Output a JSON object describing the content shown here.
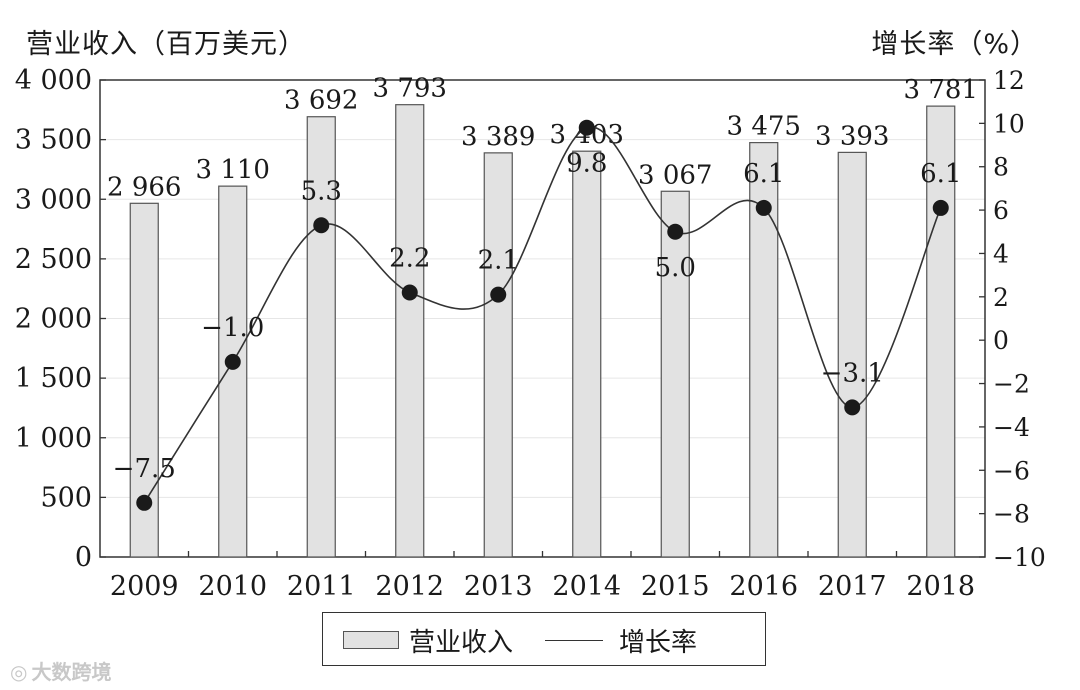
{
  "chart_data": {
    "type": "bar+line",
    "categories": [
      "2009",
      "2010",
      "2011",
      "2012",
      "2013",
      "2014",
      "2015",
      "2016",
      "2017",
      "2018"
    ],
    "series": [
      {
        "name": "营业收入",
        "type": "bar",
        "axis": "left",
        "values": [
          2966,
          3110,
          3692,
          3793,
          3389,
          3403,
          3067,
          3475,
          3393,
          3781
        ],
        "labels": [
          "2 966",
          "3 110",
          "3 692",
          "3 793",
          "3 389",
          "3 403",
          "3 067",
          "3 475",
          "3 393",
          "3 781"
        ]
      },
      {
        "name": "增长率",
        "type": "line",
        "axis": "right",
        "values": [
          -7.5,
          -1.0,
          5.3,
          2.2,
          2.1,
          9.8,
          5.0,
          6.1,
          -3.1,
          6.1
        ],
        "labels": [
          "−7.5",
          "−1.0",
          "5.3",
          "2.2",
          "2.1",
          "9.8",
          "5.0",
          "6.1",
          "−3.1",
          "6.1"
        ]
      }
    ],
    "left_axis": {
      "title": "营业收入（百万美元）",
      "min": 0,
      "max": 4000,
      "ticks": [
        0,
        500,
        1000,
        1500,
        2000,
        2500,
        3000,
        3500,
        4000
      ],
      "tick_labels": [
        "0",
        "500",
        "1 000",
        "1 500",
        "2 000",
        "2 500",
        "3 000",
        "3 500",
        "4 000"
      ]
    },
    "right_axis": {
      "title": "增长率（%）",
      "min": -10,
      "max": 12,
      "ticks": [
        -10,
        -8,
        -6,
        -4,
        -2,
        0,
        2,
        4,
        6,
        8,
        10,
        12
      ],
      "tick_labels": [
        "−10",
        "−8",
        "−6",
        "−4",
        "−2",
        "0",
        "2",
        "4",
        "6",
        "8",
        "10",
        "12"
      ]
    },
    "grid": true,
    "legend_position": "bottom-center",
    "colors": {
      "bar_fill": "#e2e2e2",
      "bar_stroke": "#555555",
      "line": "#333333",
      "marker": "#1a1a1a",
      "grid": "#e6e6e6"
    }
  },
  "legend": {
    "bar_label": "营业收入",
    "line_label": "增长率"
  },
  "watermark": {
    "text": "大数跨境"
  }
}
